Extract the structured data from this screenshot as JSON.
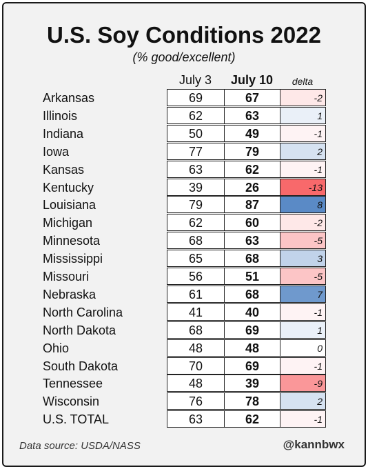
{
  "chart_data": {
    "type": "table",
    "title": "U.S. Soy Conditions 2022",
    "subtitle": "(% good/excellent)",
    "columns": [
      "July 3",
      "July 10",
      "delta"
    ],
    "rows": [
      {
        "name": "Arkansas",
        "july3": 69,
        "july10": 67,
        "delta": -2
      },
      {
        "name": "Illinois",
        "july3": 62,
        "july10": 63,
        "delta": 1
      },
      {
        "name": "Indiana",
        "july3": 50,
        "july10": 49,
        "delta": -1
      },
      {
        "name": "Iowa",
        "july3": 77,
        "july10": 79,
        "delta": 2
      },
      {
        "name": "Kansas",
        "july3": 63,
        "july10": 62,
        "delta": -1
      },
      {
        "name": "Kentucky",
        "july3": 39,
        "july10": 26,
        "delta": -13
      },
      {
        "name": "Louisiana",
        "july3": 79,
        "july10": 87,
        "delta": 8
      },
      {
        "name": "Michigan",
        "july3": 62,
        "july10": 60,
        "delta": -2
      },
      {
        "name": "Minnesota",
        "july3": 68,
        "july10": 63,
        "delta": -5
      },
      {
        "name": "Mississippi",
        "july3": 65,
        "july10": 68,
        "delta": 3
      },
      {
        "name": "Missouri",
        "july3": 56,
        "july10": 51,
        "delta": -5
      },
      {
        "name": "Nebraska",
        "july3": 61,
        "july10": 68,
        "delta": 7
      },
      {
        "name": "North Carolina",
        "july3": 41,
        "july10": 40,
        "delta": -1
      },
      {
        "name": "North Dakota",
        "july3": 68,
        "july10": 69,
        "delta": 1
      },
      {
        "name": "Ohio",
        "july3": 48,
        "july10": 48,
        "delta": 0
      },
      {
        "name": "South Dakota",
        "july3": 70,
        "july10": 69,
        "delta": -1
      },
      {
        "name": "Tennessee",
        "july3": 48,
        "july10": 39,
        "delta": -9
      },
      {
        "name": "Wisconsin",
        "july3": 76,
        "july10": 78,
        "delta": 2
      },
      {
        "name": "U.S. TOTAL",
        "july3": 63,
        "july10": 62,
        "delta": -1
      }
    ],
    "delta_colors": {
      "negative": "#f8696b",
      "positive": "#5a8ac6",
      "neutral": "#ffffff"
    }
  },
  "footer": {
    "source": "Data source: USDA/NASS",
    "handle": "@kannbwx"
  }
}
